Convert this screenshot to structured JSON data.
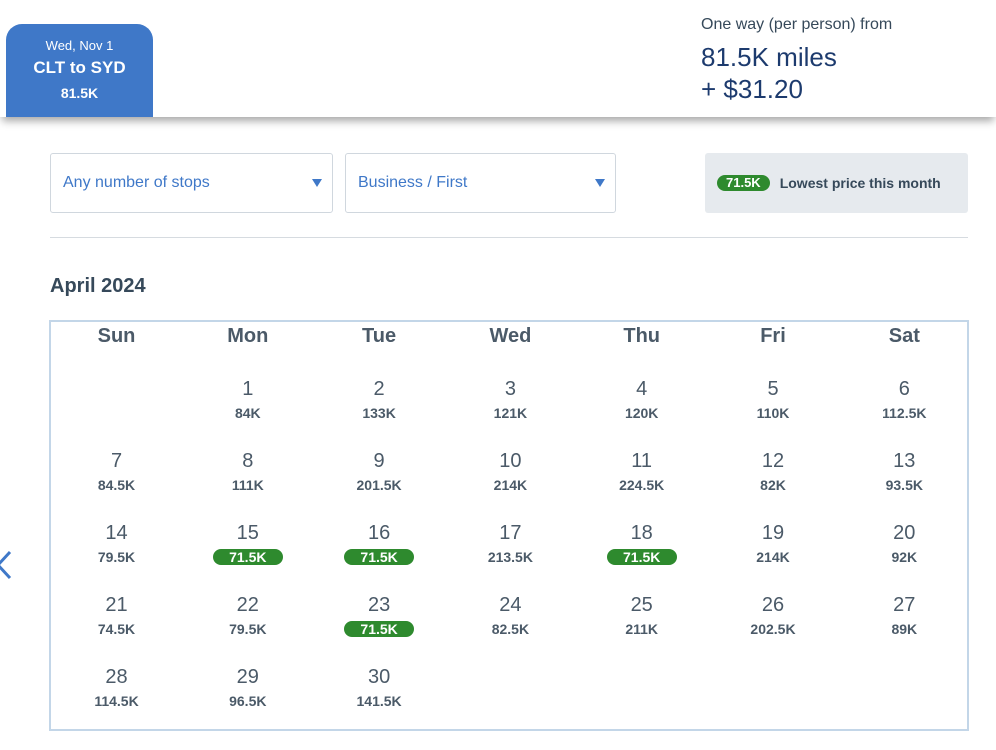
{
  "tab": {
    "date": "Wed, Nov 1",
    "route": "CLT to SYD",
    "price": "81.5K"
  },
  "summary": {
    "label": "One way (per person) from",
    "miles": "81.5K miles",
    "cash": "+ $31.20"
  },
  "filters": {
    "stops": "Any number of stops",
    "cabin": "Business / First"
  },
  "lowest": {
    "badge": "71.5K",
    "label": "Lowest price this month"
  },
  "calendar": {
    "month": "April 2024",
    "weekdays": [
      "Sun",
      "Mon",
      "Tue",
      "Wed",
      "Thu",
      "Fri",
      "Sat"
    ],
    "days": [
      {
        "day": "1",
        "price": "84K",
        "low": false
      },
      {
        "day": "2",
        "price": "133K",
        "low": false
      },
      {
        "day": "3",
        "price": "121K",
        "low": false
      },
      {
        "day": "4",
        "price": "120K",
        "low": false
      },
      {
        "day": "5",
        "price": "110K",
        "low": false
      },
      {
        "day": "6",
        "price": "112.5K",
        "low": false
      },
      {
        "day": "7",
        "price": "84.5K",
        "low": false
      },
      {
        "day": "8",
        "price": "111K",
        "low": false
      },
      {
        "day": "9",
        "price": "201.5K",
        "low": false
      },
      {
        "day": "10",
        "price": "214K",
        "low": false
      },
      {
        "day": "11",
        "price": "224.5K",
        "low": false
      },
      {
        "day": "12",
        "price": "82K",
        "low": false
      },
      {
        "day": "13",
        "price": "93.5K",
        "low": false
      },
      {
        "day": "14",
        "price": "79.5K",
        "low": false
      },
      {
        "day": "15",
        "price": "71.5K",
        "low": true
      },
      {
        "day": "16",
        "price": "71.5K",
        "low": true
      },
      {
        "day": "17",
        "price": "213.5K",
        "low": false
      },
      {
        "day": "18",
        "price": "71.5K",
        "low": true
      },
      {
        "day": "19",
        "price": "214K",
        "low": false
      },
      {
        "day": "20",
        "price": "92K",
        "low": false
      },
      {
        "day": "21",
        "price": "74.5K",
        "low": false
      },
      {
        "day": "22",
        "price": "79.5K",
        "low": false
      },
      {
        "day": "23",
        "price": "71.5K",
        "low": true
      },
      {
        "day": "24",
        "price": "82.5K",
        "low": false
      },
      {
        "day": "25",
        "price": "211K",
        "low": false
      },
      {
        "day": "26",
        "price": "202.5K",
        "low": false
      },
      {
        "day": "27",
        "price": "89K",
        "low": false
      },
      {
        "day": "28",
        "price": "114.5K",
        "low": false
      },
      {
        "day": "29",
        "price": "96.5K",
        "low": false
      },
      {
        "day": "30",
        "price": "141.5K",
        "low": false
      }
    ]
  },
  "icons": {
    "prev": "chevron-left-icon",
    "dropdown": "caret-down-icon"
  },
  "colors": {
    "accent": "#3f78c8",
    "lowest_price": "#2e8a2e",
    "heading": "#1d3b6e"
  }
}
